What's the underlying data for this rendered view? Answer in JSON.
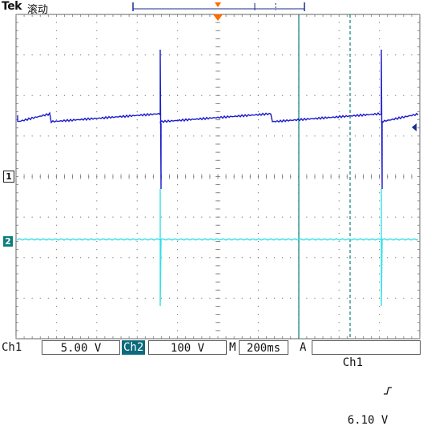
{
  "header": {
    "brand": "Tek",
    "status": "滚动"
  },
  "markers": {
    "ch1": "1",
    "ch2": "2"
  },
  "footer": {
    "ch1_label": "Ch1",
    "ch1_scale": "5.00 V",
    "ch2_label": "Ch2",
    "ch2_scale": "100 V",
    "time_label": "M",
    "time_scale": "200ms",
    "trigger_label": "A",
    "trigger_source": "Ch1",
    "trigger_slope_icon": "rising-edge-icon",
    "trigger_level": "6.10 V"
  },
  "colors": {
    "ch1": "#1a1acc",
    "ch2": "#33e0e8",
    "cursor": "#0b7e80",
    "trigger_marker": "#ff6a00",
    "grid": "#8a8a8a"
  }
}
